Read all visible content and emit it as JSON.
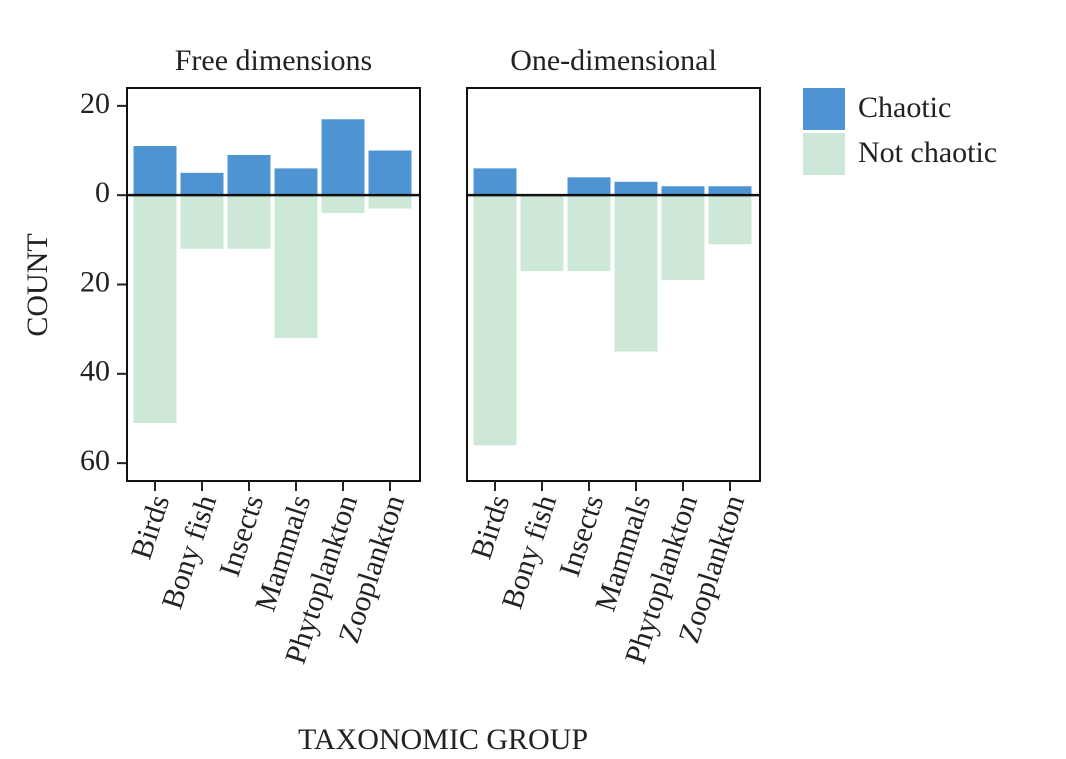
{
  "chart_data": {
    "type": "bar",
    "ylabel": "COUNT",
    "xlabel": "TAXONOMIC GROUP",
    "categories": [
      "Birds",
      "Bony fish",
      "Insects",
      "Mammals",
      "Phytoplankton",
      "Zooplankton"
    ],
    "ylim": [
      -64,
      24
    ],
    "yticks": [
      20,
      0,
      {
        "value": -20,
        "label": "20"
      },
      {
        "value": -40,
        "label": "40"
      },
      {
        "value": -60,
        "label": "60"
      }
    ],
    "legend": "right",
    "series": [
      {
        "name": "Chaotic",
        "color": "#4f94d2"
      },
      {
        "name": "Not chaotic",
        "color": "#cde8d6"
      }
    ],
    "panels": [
      {
        "title": "Free dimensions",
        "series": [
          {
            "values": [
              11,
              5,
              9,
              6,
              17,
              10
            ]
          },
          {
            "values": [
              -51,
              -12,
              -12,
              -32,
              -4,
              -3
            ]
          }
        ]
      },
      {
        "title": "One-dimensional",
        "series": [
          {
            "values": [
              6,
              0,
              4,
              3,
              2,
              2
            ]
          },
          {
            "values": [
              -56,
              -17,
              -17,
              -35,
              -19,
              -11
            ]
          }
        ]
      }
    ]
  }
}
